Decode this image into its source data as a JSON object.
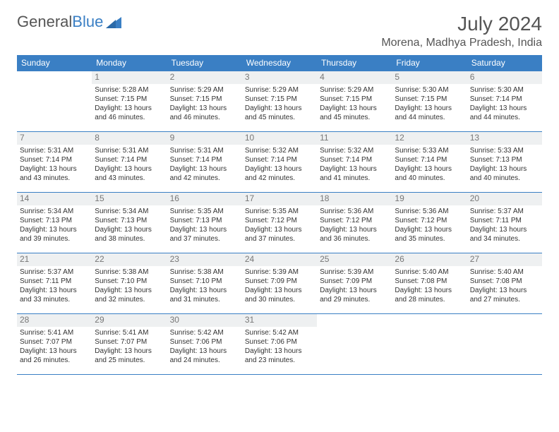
{
  "logo": {
    "text1": "General",
    "text2": "Blue"
  },
  "header": {
    "month_year": "July 2024",
    "location": "Morena, Madhya Pradesh, India"
  },
  "colors": {
    "header_bg": "#3a7fc4",
    "header_text": "#ffffff",
    "border": "#3a7fc4",
    "daynum_bg": "#eef0f1",
    "text": "#333333"
  },
  "weekdays": [
    "Sunday",
    "Monday",
    "Tuesday",
    "Wednesday",
    "Thursday",
    "Friday",
    "Saturday"
  ],
  "weeks": [
    [
      null,
      {
        "n": "1",
        "sr": "Sunrise: 5:28 AM",
        "ss": "Sunset: 7:15 PM",
        "dl": "Daylight: 13 hours and 46 minutes."
      },
      {
        "n": "2",
        "sr": "Sunrise: 5:29 AM",
        "ss": "Sunset: 7:15 PM",
        "dl": "Daylight: 13 hours and 46 minutes."
      },
      {
        "n": "3",
        "sr": "Sunrise: 5:29 AM",
        "ss": "Sunset: 7:15 PM",
        "dl": "Daylight: 13 hours and 45 minutes."
      },
      {
        "n": "4",
        "sr": "Sunrise: 5:29 AM",
        "ss": "Sunset: 7:15 PM",
        "dl": "Daylight: 13 hours and 45 minutes."
      },
      {
        "n": "5",
        "sr": "Sunrise: 5:30 AM",
        "ss": "Sunset: 7:15 PM",
        "dl": "Daylight: 13 hours and 44 minutes."
      },
      {
        "n": "6",
        "sr": "Sunrise: 5:30 AM",
        "ss": "Sunset: 7:14 PM",
        "dl": "Daylight: 13 hours and 44 minutes."
      }
    ],
    [
      {
        "n": "7",
        "sr": "Sunrise: 5:31 AM",
        "ss": "Sunset: 7:14 PM",
        "dl": "Daylight: 13 hours and 43 minutes."
      },
      {
        "n": "8",
        "sr": "Sunrise: 5:31 AM",
        "ss": "Sunset: 7:14 PM",
        "dl": "Daylight: 13 hours and 43 minutes."
      },
      {
        "n": "9",
        "sr": "Sunrise: 5:31 AM",
        "ss": "Sunset: 7:14 PM",
        "dl": "Daylight: 13 hours and 42 minutes."
      },
      {
        "n": "10",
        "sr": "Sunrise: 5:32 AM",
        "ss": "Sunset: 7:14 PM",
        "dl": "Daylight: 13 hours and 42 minutes."
      },
      {
        "n": "11",
        "sr": "Sunrise: 5:32 AM",
        "ss": "Sunset: 7:14 PM",
        "dl": "Daylight: 13 hours and 41 minutes."
      },
      {
        "n": "12",
        "sr": "Sunrise: 5:33 AM",
        "ss": "Sunset: 7:14 PM",
        "dl": "Daylight: 13 hours and 40 minutes."
      },
      {
        "n": "13",
        "sr": "Sunrise: 5:33 AM",
        "ss": "Sunset: 7:13 PM",
        "dl": "Daylight: 13 hours and 40 minutes."
      }
    ],
    [
      {
        "n": "14",
        "sr": "Sunrise: 5:34 AM",
        "ss": "Sunset: 7:13 PM",
        "dl": "Daylight: 13 hours and 39 minutes."
      },
      {
        "n": "15",
        "sr": "Sunrise: 5:34 AM",
        "ss": "Sunset: 7:13 PM",
        "dl": "Daylight: 13 hours and 38 minutes."
      },
      {
        "n": "16",
        "sr": "Sunrise: 5:35 AM",
        "ss": "Sunset: 7:13 PM",
        "dl": "Daylight: 13 hours and 37 minutes."
      },
      {
        "n": "17",
        "sr": "Sunrise: 5:35 AM",
        "ss": "Sunset: 7:12 PM",
        "dl": "Daylight: 13 hours and 37 minutes."
      },
      {
        "n": "18",
        "sr": "Sunrise: 5:36 AM",
        "ss": "Sunset: 7:12 PM",
        "dl": "Daylight: 13 hours and 36 minutes."
      },
      {
        "n": "19",
        "sr": "Sunrise: 5:36 AM",
        "ss": "Sunset: 7:12 PM",
        "dl": "Daylight: 13 hours and 35 minutes."
      },
      {
        "n": "20",
        "sr": "Sunrise: 5:37 AM",
        "ss": "Sunset: 7:11 PM",
        "dl": "Daylight: 13 hours and 34 minutes."
      }
    ],
    [
      {
        "n": "21",
        "sr": "Sunrise: 5:37 AM",
        "ss": "Sunset: 7:11 PM",
        "dl": "Daylight: 13 hours and 33 minutes."
      },
      {
        "n": "22",
        "sr": "Sunrise: 5:38 AM",
        "ss": "Sunset: 7:10 PM",
        "dl": "Daylight: 13 hours and 32 minutes."
      },
      {
        "n": "23",
        "sr": "Sunrise: 5:38 AM",
        "ss": "Sunset: 7:10 PM",
        "dl": "Daylight: 13 hours and 31 minutes."
      },
      {
        "n": "24",
        "sr": "Sunrise: 5:39 AM",
        "ss": "Sunset: 7:09 PM",
        "dl": "Daylight: 13 hours and 30 minutes."
      },
      {
        "n": "25",
        "sr": "Sunrise: 5:39 AM",
        "ss": "Sunset: 7:09 PM",
        "dl": "Daylight: 13 hours and 29 minutes."
      },
      {
        "n": "26",
        "sr": "Sunrise: 5:40 AM",
        "ss": "Sunset: 7:08 PM",
        "dl": "Daylight: 13 hours and 28 minutes."
      },
      {
        "n": "27",
        "sr": "Sunrise: 5:40 AM",
        "ss": "Sunset: 7:08 PM",
        "dl": "Daylight: 13 hours and 27 minutes."
      }
    ],
    [
      {
        "n": "28",
        "sr": "Sunrise: 5:41 AM",
        "ss": "Sunset: 7:07 PM",
        "dl": "Daylight: 13 hours and 26 minutes."
      },
      {
        "n": "29",
        "sr": "Sunrise: 5:41 AM",
        "ss": "Sunset: 7:07 PM",
        "dl": "Daylight: 13 hours and 25 minutes."
      },
      {
        "n": "30",
        "sr": "Sunrise: 5:42 AM",
        "ss": "Sunset: 7:06 PM",
        "dl": "Daylight: 13 hours and 24 minutes."
      },
      {
        "n": "31",
        "sr": "Sunrise: 5:42 AM",
        "ss": "Sunset: 7:06 PM",
        "dl": "Daylight: 13 hours and 23 minutes."
      },
      null,
      null,
      null
    ]
  ]
}
